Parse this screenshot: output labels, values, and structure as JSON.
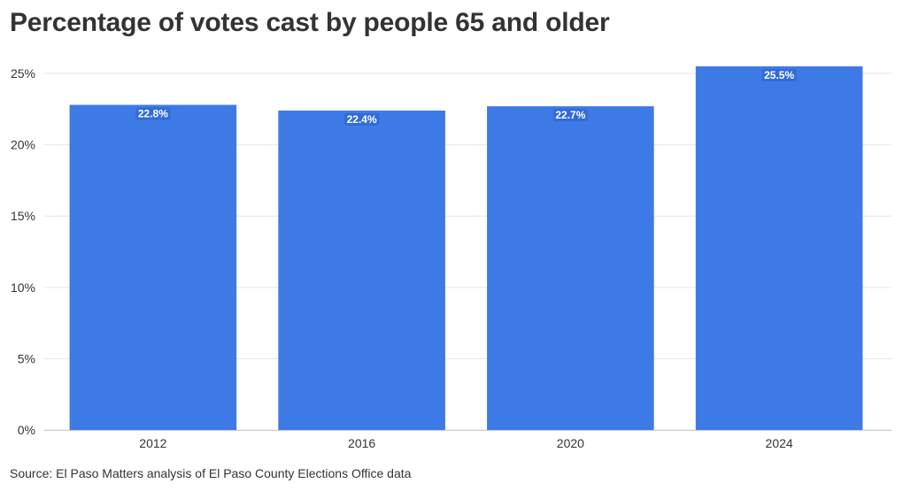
{
  "title": "Percentage of votes cast by people 65 and older",
  "source": "Source: El Paso Matters analysis of El Paso County Elections Office data",
  "colors": {
    "bar": "#3d7ae5",
    "label_bg": "#2a5fcf",
    "grid": "#e6e6e6",
    "text": "#333333"
  },
  "chart_data": {
    "type": "bar",
    "categories": [
      "2012",
      "2016",
      "2020",
      "2024"
    ],
    "values": [
      22.8,
      22.4,
      22.7,
      25.5
    ],
    "data_labels": [
      "22.8%",
      "22.4%",
      "22.7%",
      "25.5%"
    ],
    "title": "Percentage of votes cast by people 65 and older",
    "xlabel": "",
    "ylabel": "",
    "ylim": [
      0,
      25.5
    ],
    "yticks": [
      0,
      5,
      10,
      15,
      20,
      25
    ],
    "ytick_labels": [
      "0%",
      "5%",
      "10%",
      "15%",
      "20%",
      "25%"
    ],
    "grid": true,
    "legend": "none"
  }
}
